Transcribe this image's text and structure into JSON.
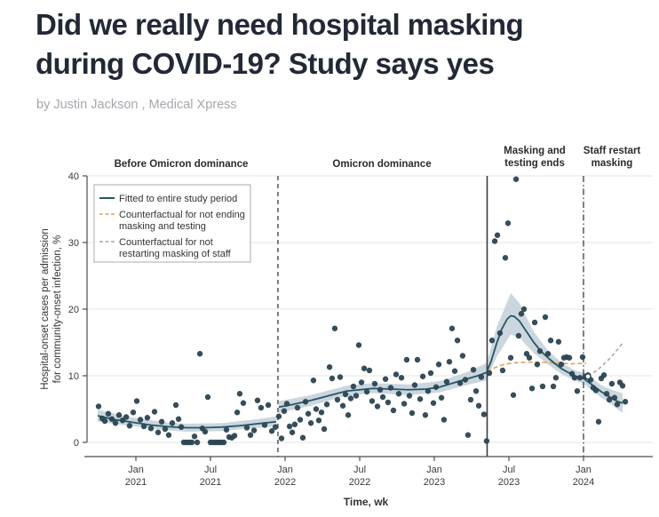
{
  "header": {
    "title_line1": "Did we really need hospital masking",
    "title_line2": "during COVID-19? Study says yes",
    "byline": "by Justin Jackson , Medical Xpress"
  },
  "chart_data": {
    "type": "scatter",
    "xlabel": "Time, wk",
    "ylabel_line1": "Hospital-onset cases per admission",
    "ylabel_line2": "for community-onset infection, %",
    "ylim": [
      0,
      40
    ],
    "x_range_years": [
      2020.65,
      2024.46
    ],
    "grid": true,
    "y_ticks": [
      "0",
      "10",
      "20",
      "30",
      "40"
    ],
    "x_ticks": [
      {
        "t": 2021.0,
        "line1": "Jan",
        "line2": "2021"
      },
      {
        "t": 2021.5,
        "line1": "Jul",
        "line2": "2021"
      },
      {
        "t": 2022.0,
        "line1": "Jan",
        "line2": "2022"
      },
      {
        "t": 2022.5,
        "line1": "Jul",
        "line2": "2022"
      },
      {
        "t": 2023.0,
        "line1": "Jan",
        "line2": "2023"
      },
      {
        "t": 2023.5,
        "line1": "Jul",
        "line2": "2023"
      },
      {
        "t": 2024.0,
        "line1": "Jan",
        "line2": "2024"
      }
    ],
    "sections": [
      {
        "lines": [
          "Before Omicron dominance"
        ]
      },
      {
        "lines": [
          "Omicron dominance"
        ]
      },
      {
        "lines": [
          "Masking and",
          "testing ends"
        ]
      },
      {
        "lines": [
          "Staff restart",
          "masking"
        ]
      }
    ],
    "events": [
      {
        "name": "omicron-dominance-start",
        "t": 2021.952,
        "line": "dashed"
      },
      {
        "name": "masking-and-testing-end",
        "t": 2023.354,
        "line": "solid"
      },
      {
        "name": "staff-restart-masking",
        "t": 2024.0,
        "line": "dashdot"
      }
    ],
    "legend": {
      "position": "top-left",
      "items": [
        {
          "style": "solid-teal",
          "lines": [
            "Fitted to entire study period"
          ]
        },
        {
          "style": "dashed-orange",
          "lines": [
            "Counterfactual for not ending",
            "masking and testing"
          ]
        },
        {
          "style": "dashed-gray",
          "lines": [
            "Counterfactual for not",
            "restarting masking of staff"
          ]
        }
      ]
    },
    "colors": {
      "point": "#2b4552",
      "fitted_line": "#265563",
      "ci_band": "#c5d1da",
      "counterfactual_no_ending": "#dca35b",
      "counterfactual_no_restart": "#a9a79a",
      "gridline": "#e6e6e6",
      "axis": "#4d4d4d",
      "event_line": "#3c3c3c"
    },
    "fit_pre": [
      [
        2020.744,
        4.0
      ],
      [
        2020.863,
        3.4
      ],
      [
        2020.982,
        3.0
      ],
      [
        2021.101,
        2.6
      ],
      [
        2021.22,
        2.35
      ],
      [
        2021.339,
        2.2
      ],
      [
        2021.458,
        2.2
      ],
      [
        2021.577,
        2.3
      ],
      [
        2021.696,
        2.5
      ],
      [
        2021.815,
        2.8
      ],
      [
        2021.94,
        3.1
      ]
    ],
    "fit_post": [
      [
        2021.958,
        5.3
      ],
      [
        2022.054,
        5.7
      ],
      [
        2022.173,
        6.3
      ],
      [
        2022.292,
        7.0
      ],
      [
        2022.411,
        7.7
      ],
      [
        2022.5,
        7.9
      ],
      [
        2022.589,
        8.1
      ],
      [
        2022.708,
        8.0
      ],
      [
        2022.827,
        7.9
      ],
      [
        2022.946,
        8.0
      ],
      [
        2023.036,
        8.3
      ],
      [
        2023.125,
        8.9
      ],
      [
        2023.214,
        9.5
      ],
      [
        2023.292,
        10.0
      ],
      [
        2023.351,
        10.5
      ],
      [
        2023.381,
        12.2
      ],
      [
        2023.417,
        14.8
      ],
      [
        2023.452,
        17.0
      ],
      [
        2023.488,
        18.5
      ],
      [
        2023.512,
        19.0
      ],
      [
        2023.536,
        18.9
      ],
      [
        2023.571,
        18.2
      ],
      [
        2023.619,
        16.6
      ],
      [
        2023.667,
        15.0
      ],
      [
        2023.714,
        13.7
      ],
      [
        2023.762,
        12.7
      ],
      [
        2023.81,
        11.8
      ],
      [
        2023.857,
        11.0
      ],
      [
        2023.905,
        10.4
      ],
      [
        2023.952,
        9.9
      ],
      [
        2024.0,
        9.6
      ],
      [
        2024.06,
        8.6
      ],
      [
        2024.119,
        7.6
      ],
      [
        2024.179,
        6.8
      ],
      [
        2024.232,
        6.1
      ],
      [
        2024.262,
        5.9
      ]
    ],
    "band_pre": [
      [
        2020.744,
        3.1,
        4.9
      ],
      [
        2020.982,
        2.4,
        3.7
      ],
      [
        2021.22,
        1.8,
        2.95
      ],
      [
        2021.339,
        1.6,
        2.8
      ],
      [
        2021.577,
        1.7,
        2.9
      ],
      [
        2021.815,
        2.2,
        3.5
      ],
      [
        2021.94,
        2.35,
        3.9
      ]
    ],
    "band_post": [
      [
        2021.958,
        4.4,
        6.2
      ],
      [
        2022.173,
        5.5,
        7.1
      ],
      [
        2022.411,
        7.0,
        8.5
      ],
      [
        2022.589,
        7.4,
        8.9
      ],
      [
        2022.827,
        7.1,
        8.7
      ],
      [
        2023.036,
        7.5,
        9.2
      ],
      [
        2023.214,
        8.6,
        10.5
      ],
      [
        2023.351,
        9.3,
        11.9
      ],
      [
        2023.417,
        12.8,
        17.2
      ],
      [
        2023.512,
        16.2,
        22.4
      ],
      [
        2023.571,
        15.7,
        20.9
      ],
      [
        2023.667,
        13.4,
        16.6
      ],
      [
        2023.762,
        11.7,
        13.8
      ],
      [
        2023.857,
        10.2,
        11.9
      ],
      [
        2023.952,
        9.2,
        10.7
      ],
      [
        2024.0,
        8.8,
        10.5
      ],
      [
        2024.119,
        6.7,
        8.6
      ],
      [
        2024.2,
        5.5,
        7.8
      ],
      [
        2024.262,
        4.4,
        7.4
      ]
    ],
    "counterfactual_no_ending": [
      [
        2023.354,
        10.6
      ],
      [
        2023.405,
        11.2
      ],
      [
        2023.464,
        11.7
      ],
      [
        2023.536,
        11.95
      ],
      [
        2023.631,
        12.05
      ],
      [
        2023.726,
        12.0
      ],
      [
        2023.821,
        11.9
      ],
      [
        2023.917,
        11.8
      ],
      [
        2024.018,
        11.85
      ]
    ],
    "counterfactual_no_restart": [
      [
        2024.03,
        10.0
      ],
      [
        2024.083,
        10.7
      ],
      [
        2024.125,
        11.5
      ],
      [
        2024.167,
        12.4
      ],
      [
        2024.208,
        13.4
      ],
      [
        2024.244,
        14.4
      ],
      [
        2024.262,
        14.9
      ]
    ],
    "open_point": [
      2024.03,
      9.9
    ],
    "points": [
      [
        2020.75,
        5.4
      ],
      [
        2020.774,
        3.6
      ],
      [
        2020.792,
        3.2
      ],
      [
        2020.815,
        4.3
      ],
      [
        2020.839,
        3.5
      ],
      [
        2020.863,
        2.9
      ],
      [
        2020.887,
        4.1
      ],
      [
        2020.911,
        3.3
      ],
      [
        2020.935,
        3.8
      ],
      [
        2020.958,
        2.5
      ],
      [
        2020.982,
        4.5
      ],
      [
        2021.006,
        6.2
      ],
      [
        2021.03,
        3.4
      ],
      [
        2021.054,
        2.4
      ],
      [
        2021.077,
        3.7
      ],
      [
        2021.101,
        2.1
      ],
      [
        2021.125,
        4.6
      ],
      [
        2021.149,
        1.5
      ],
      [
        2021.173,
        3.1
      ],
      [
        2021.196,
        2.0
      ],
      [
        2021.22,
        1.1
      ],
      [
        2021.244,
        2.9
      ],
      [
        2021.268,
        5.6
      ],
      [
        2021.286,
        3.5
      ],
      [
        2021.304,
        2.3
      ],
      [
        2021.321,
        0
      ],
      [
        2021.339,
        0
      ],
      [
        2021.357,
        0
      ],
      [
        2021.375,
        0
      ],
      [
        2021.393,
        0.9
      ],
      [
        2021.411,
        0
      ],
      [
        2021.429,
        13.3
      ],
      [
        2021.446,
        2.1
      ],
      [
        2021.464,
        1.6
      ],
      [
        2021.482,
        6.8
      ],
      [
        2021.5,
        0
      ],
      [
        2021.518,
        0
      ],
      [
        2021.536,
        0
      ],
      [
        2021.554,
        0
      ],
      [
        2021.571,
        0
      ],
      [
        2021.589,
        0
      ],
      [
        2021.607,
        1.9
      ],
      [
        2021.625,
        0.8
      ],
      [
        2021.643,
        0.7
      ],
      [
        2021.661,
        1.0
      ],
      [
        2021.679,
        4.5
      ],
      [
        2021.696,
        7.3
      ],
      [
        2021.72,
        5.9
      ],
      [
        2021.744,
        2.2
      ],
      [
        2021.768,
        1.1
      ],
      [
        2021.792,
        1.8
      ],
      [
        2021.815,
        6.3
      ],
      [
        2021.839,
        5.2
      ],
      [
        2021.863,
        2.6
      ],
      [
        2021.887,
        5.6
      ],
      [
        2021.911,
        1.7
      ],
      [
        2021.935,
        2.3
      ],
      [
        2021.958,
        3.9
      ],
      [
        2021.976,
        0.6
      ],
      [
        2021.994,
        4.7
      ],
      [
        2022.012,
        5.8
      ],
      [
        2022.03,
        2.4
      ],
      [
        2022.048,
        1.5
      ],
      [
        2022.065,
        2.7
      ],
      [
        2022.083,
        5.2
      ],
      [
        2022.101,
        3.4
      ],
      [
        2022.119,
        0.7
      ],
      [
        2022.137,
        6.1
      ],
      [
        2022.155,
        4.3
      ],
      [
        2022.173,
        2.9
      ],
      [
        2022.19,
        9.3
      ],
      [
        2022.208,
        5.0
      ],
      [
        2022.226,
        3.3
      ],
      [
        2022.244,
        4.5
      ],
      [
        2022.262,
        2.0
      ],
      [
        2022.28,
        5.7
      ],
      [
        2022.298,
        11.3
      ],
      [
        2022.315,
        9.6
      ],
      [
        2022.333,
        17.1
      ],
      [
        2022.351,
        6.4
      ],
      [
        2022.369,
        9.8
      ],
      [
        2022.387,
        5.5
      ],
      [
        2022.405,
        7.2
      ],
      [
        2022.423,
        4.1
      ],
      [
        2022.44,
        6.6
      ],
      [
        2022.458,
        8.4
      ],
      [
        2022.476,
        7.0
      ],
      [
        2022.494,
        14.6
      ],
      [
        2022.512,
        9.0
      ],
      [
        2022.53,
        11.1
      ],
      [
        2022.548,
        7.6
      ],
      [
        2022.565,
        10.8
      ],
      [
        2022.583,
        6.2
      ],
      [
        2022.601,
        8.8
      ],
      [
        2022.619,
        5.4
      ],
      [
        2022.637,
        7.9
      ],
      [
        2022.655,
        6.8
      ],
      [
        2022.673,
        9.5
      ],
      [
        2022.69,
        6.0
      ],
      [
        2022.708,
        8.2
      ],
      [
        2022.726,
        4.8
      ],
      [
        2022.744,
        10.2
      ],
      [
        2022.762,
        7.3
      ],
      [
        2022.78,
        9.7
      ],
      [
        2022.798,
        5.8
      ],
      [
        2022.815,
        12.4
      ],
      [
        2022.833,
        7.0
      ],
      [
        2022.851,
        4.4
      ],
      [
        2022.869,
        8.6
      ],
      [
        2022.887,
        12.4
      ],
      [
        2022.905,
        6.5
      ],
      [
        2022.923,
        9.9
      ],
      [
        2022.94,
        4.1
      ],
      [
        2022.958,
        7.7
      ],
      [
        2022.976,
        10.4
      ],
      [
        2022.994,
        5.9
      ],
      [
        2023.012,
        8.3
      ],
      [
        2023.03,
        11.7
      ],
      [
        2023.048,
        6.7
      ],
      [
        2023.065,
        3.4
      ],
      [
        2023.083,
        9.1
      ],
      [
        2023.101,
        12.1
      ],
      [
        2023.119,
        17.1
      ],
      [
        2023.137,
        10.7
      ],
      [
        2023.155,
        15.3
      ],
      [
        2023.173,
        8.9
      ],
      [
        2023.19,
        13.0
      ],
      [
        2023.208,
        9.4
      ],
      [
        2023.226,
        1.1
      ],
      [
        2023.244,
        6.4
      ],
      [
        2023.262,
        10.9
      ],
      [
        2023.28,
        7.7
      ],
      [
        2023.298,
        5.5
      ],
      [
        2023.315,
        9.8
      ],
      [
        2023.333,
        4.2
      ],
      [
        2023.351,
        0.2
      ],
      [
        2023.369,
        10.4
      ],
      [
        2023.387,
        15.3
      ],
      [
        2023.405,
        30.2
      ],
      [
        2023.423,
        31.1
      ],
      [
        2023.44,
        16.4
      ],
      [
        2023.458,
        10.8
      ],
      [
        2023.476,
        27.7
      ],
      [
        2023.494,
        32.9
      ],
      [
        2023.512,
        12.7
      ],
      [
        2023.53,
        7.1
      ],
      [
        2023.548,
        39.5
      ],
      [
        2023.565,
        16.0
      ],
      [
        2023.583,
        19.3
      ],
      [
        2023.601,
        20.0
      ],
      [
        2023.619,
        13.3
      ],
      [
        2023.637,
        12.7
      ],
      [
        2023.655,
        8.1
      ],
      [
        2023.673,
        18.0
      ],
      [
        2023.69,
        11.7
      ],
      [
        2023.708,
        13.7
      ],
      [
        2023.726,
        8.4
      ],
      [
        2023.744,
        18.8
      ],
      [
        2023.762,
        13.3
      ],
      [
        2023.78,
        15.3
      ],
      [
        2023.798,
        8.4
      ],
      [
        2023.815,
        9.7
      ],
      [
        2023.833,
        15.1
      ],
      [
        2023.851,
        11.7
      ],
      [
        2023.869,
        12.7
      ],
      [
        2023.887,
        12.8
      ],
      [
        2023.905,
        12.7
      ],
      [
        2023.923,
        10.3
      ],
      [
        2023.94,
        9.7
      ],
      [
        2023.958,
        7.7
      ],
      [
        2023.976,
        9.7
      ],
      [
        2023.994,
        12.8
      ],
      [
        2024.012,
        9.9
      ],
      [
        2024.03,
        10.1
      ],
      [
        2024.048,
        9.4
      ],
      [
        2024.065,
        8.2
      ],
      [
        2024.083,
        7.8
      ],
      [
        2024.101,
        3.1
      ],
      [
        2024.119,
        9.6
      ],
      [
        2024.137,
        10.1
      ],
      [
        2024.155,
        7.3
      ],
      [
        2024.173,
        6.4
      ],
      [
        2024.19,
        8.8
      ],
      [
        2024.208,
        6.7
      ],
      [
        2024.226,
        5.7
      ],
      [
        2024.244,
        9.0
      ],
      [
        2024.262,
        8.5
      ],
      [
        2024.28,
        6.1
      ]
    ]
  }
}
